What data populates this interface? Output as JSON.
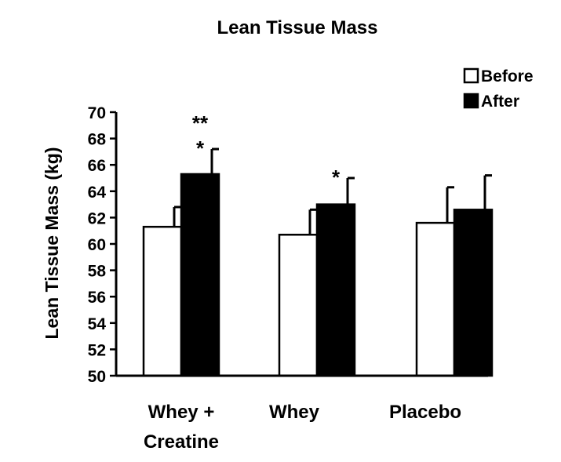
{
  "chart_data": {
    "type": "bar",
    "title": "Lean Tissue Mass",
    "ylabel": "Lean Tissue Mass (kg)",
    "xlabel": "",
    "ylim": [
      50,
      70
    ],
    "yticks": [
      50,
      52,
      54,
      56,
      58,
      60,
      62,
      64,
      66,
      68,
      70
    ],
    "categories": [
      {
        "line1": "Whey +",
        "line2": "Creatine"
      },
      {
        "line1": "Whey",
        "line2": ""
      },
      {
        "line1": "Placebo",
        "line2": ""
      }
    ],
    "series": [
      {
        "name": "Before",
        "color": "#ffffff",
        "values": [
          61.3,
          60.7,
          61.6
        ],
        "errors": [
          1.5,
          1.9,
          2.7
        ]
      },
      {
        "name": "After",
        "color": "#000000",
        "values": [
          65.3,
          63.0,
          62.6
        ],
        "errors": [
          1.9,
          2.0,
          2.6
        ]
      }
    ],
    "annotations": [
      {
        "category": 0,
        "series": 1,
        "lines": [
          "**",
          "*"
        ]
      },
      {
        "category": 1,
        "series": 1,
        "lines": [
          "*"
        ]
      }
    ],
    "grid": false,
    "legend_position": "top-right"
  }
}
